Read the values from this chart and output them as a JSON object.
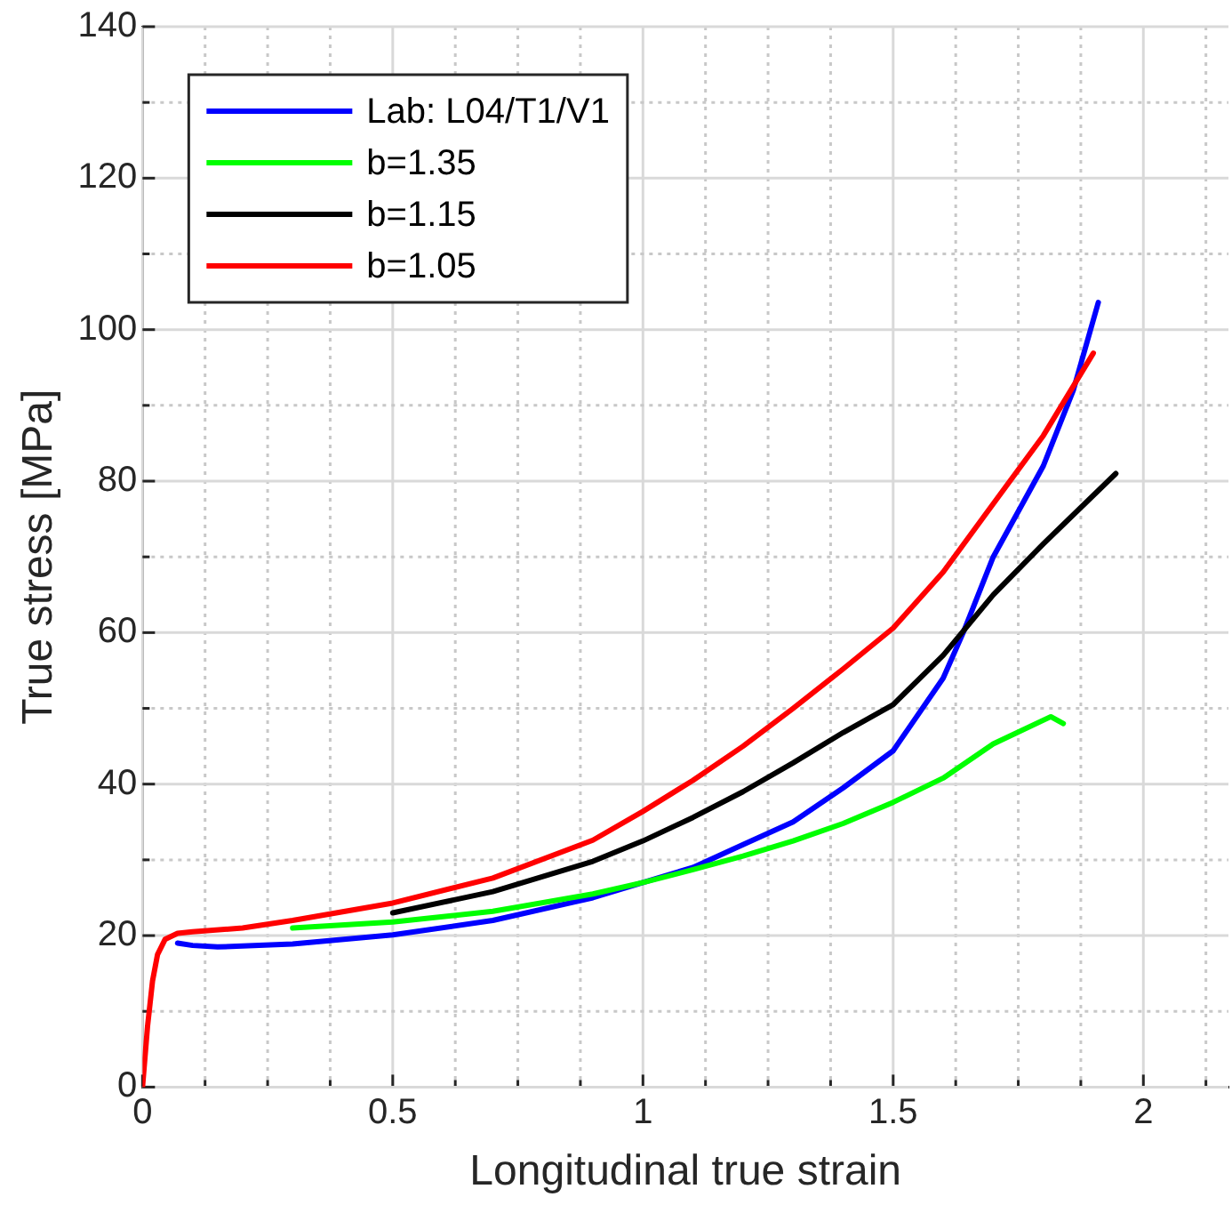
{
  "chart_data": {
    "type": "line",
    "xlabel": "Longitudinal true strain",
    "ylabel": "True stress [MPa]",
    "xlim": [
      0,
      2.17
    ],
    "xticks": [
      0,
      {
        "value": 0.125,
        "label": null
      },
      {
        "value": 0.25,
        "label": null
      },
      {
        "value": 0.375,
        "label": null
      },
      0.5,
      {
        "value": 0.625,
        "label": null
      },
      {
        "value": 0.75,
        "label": null
      },
      {
        "value": 0.875,
        "label": null
      },
      1,
      {
        "value": 1.125,
        "label": null
      },
      {
        "value": 1.25,
        "label": null
      },
      {
        "value": 1.375,
        "label": null
      },
      1.5,
      {
        "value": 1.625,
        "label": null
      },
      {
        "value": 1.75,
        "label": null
      },
      {
        "value": 1.875,
        "label": null
      },
      2,
      {
        "value": 2.125,
        "label": null
      }
    ],
    "ylim": [
      0,
      140
    ],
    "yticks": [
      0,
      {
        "value": 10,
        "label": null
      },
      20,
      {
        "value": 30,
        "label": null
      },
      40,
      {
        "value": 50,
        "label": null
      },
      60,
      {
        "value": 70,
        "label": null
      },
      80,
      {
        "value": 90,
        "label": null
      },
      100,
      {
        "value": 110,
        "label": null
      },
      120,
      {
        "value": 130,
        "label": null
      },
      140
    ],
    "grid": true,
    "legend": "top left",
    "marker": "none",
    "line_style": "solid",
    "series": [
      {
        "name": "Lab: L04/T1/V1",
        "color": "#0000ff",
        "x": [
          0.07,
          0.1,
          0.15,
          0.3,
          0.5,
          0.7,
          0.9,
          1.0,
          1.1,
          1.2,
          1.3,
          1.4,
          1.5,
          1.6,
          1.64,
          1.7,
          1.8,
          1.86,
          1.91
        ],
        "values": [
          19,
          18.7,
          18.5,
          18.9,
          20.1,
          22,
          25,
          27,
          29,
          32,
          35,
          39.5,
          44.4,
          54,
          60,
          70,
          82,
          92,
          103.6
        ]
      },
      {
        "name": "b=1.35",
        "color": "#00ff00",
        "x": [
          0.3,
          0.5,
          0.7,
          0.9,
          1.0,
          1.1,
          1.2,
          1.3,
          1.4,
          1.5,
          1.6,
          1.7,
          1.815,
          1.84
        ],
        "values": [
          21,
          21.8,
          23.2,
          25.5,
          27,
          28.7,
          30.5,
          32.5,
          34.8,
          37.6,
          40.8,
          45.3,
          48.9,
          48
        ]
      },
      {
        "name": "b=1.15",
        "color": "#000000",
        "x": [
          0.5,
          0.7,
          0.9,
          1.0,
          1.1,
          1.2,
          1.3,
          1.4,
          1.5,
          1.6,
          1.7,
          1.8,
          1.945
        ],
        "values": [
          23,
          25.8,
          29.8,
          32.5,
          35.6,
          39,
          42.8,
          46.8,
          50.5,
          57,
          65,
          71.7,
          81
        ]
      },
      {
        "name": "b=1.05",
        "color": "#ff0000",
        "x": [
          0,
          0.01,
          0.02,
          0.03,
          0.045,
          0.07,
          0.1,
          0.2,
          0.3,
          0.5,
          0.7,
          0.9,
          1.0,
          1.1,
          1.2,
          1.3,
          1.4,
          1.5,
          1.6,
          1.7,
          1.8,
          1.9
        ],
        "values": [
          0,
          8,
          14,
          17.5,
          19.5,
          20.3,
          20.5,
          21,
          22,
          24.3,
          27.6,
          32.6,
          36.4,
          40.5,
          45,
          50,
          55.2,
          60.6,
          68,
          77,
          86,
          96.9
        ]
      }
    ]
  }
}
